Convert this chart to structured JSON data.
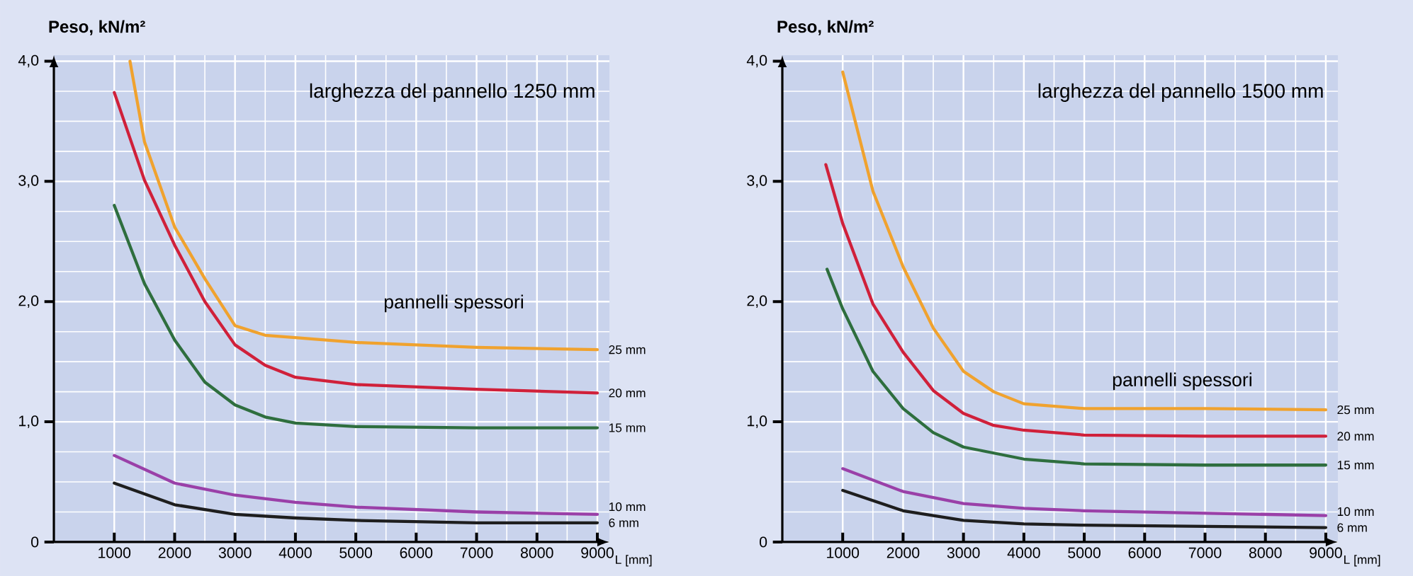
{
  "chart_data": [
    {
      "type": "line",
      "title": "larghezza del pannello 1250 mm",
      "ylabel": "Peso, kN/m²",
      "xlabel": "L [mm]",
      "legend_title": "pannelli spessori",
      "grid": true,
      "xlim": [
        0,
        9200
      ],
      "ylim": [
        0,
        4.05
      ],
      "xticks": [
        1000,
        2000,
        3000,
        4000,
        5000,
        6000,
        7000,
        8000,
        9000
      ],
      "yticks": [
        {
          "value": 0,
          "label": "0"
        },
        {
          "value": 1,
          "label": "1,0"
        },
        {
          "value": 2,
          "label": "2,0"
        },
        {
          "value": 3,
          "label": "3,0"
        },
        {
          "value": 4,
          "label": "4,0"
        }
      ],
      "series": [
        {
          "name": "25 mm",
          "color": "#f0a22e",
          "x": [
            1260,
            1500,
            2000,
            2500,
            3000,
            3500,
            4000,
            5000,
            7000,
            9000
          ],
          "values": [
            4.0,
            3.33,
            2.62,
            2.19,
            1.8,
            1.72,
            1.7,
            1.66,
            1.62,
            1.6
          ]
        },
        {
          "name": "20 mm",
          "color": "#d0203a",
          "x": [
            1000,
            1500,
            2000,
            2500,
            3000,
            3500,
            4000,
            5000,
            7000,
            9000
          ],
          "values": [
            3.74,
            3.01,
            2.47,
            2.0,
            1.64,
            1.47,
            1.37,
            1.31,
            1.27,
            1.24
          ]
        },
        {
          "name": "15 mm",
          "color": "#2e6e3e",
          "x": [
            1000,
            1500,
            2000,
            2500,
            3000,
            3500,
            4000,
            5000,
            7000,
            9000
          ],
          "values": [
            2.8,
            2.15,
            1.68,
            1.33,
            1.14,
            1.04,
            0.99,
            0.96,
            0.95,
            0.95
          ]
        },
        {
          "name": "10 mm",
          "color": "#9a40a8",
          "x": [
            1000,
            2000,
            3000,
            4000,
            5000,
            7000,
            9000
          ],
          "values": [
            0.72,
            0.49,
            0.39,
            0.33,
            0.29,
            0.25,
            0.23
          ]
        },
        {
          "name": "6 mm",
          "color": "#1e1e1e",
          "x": [
            1000,
            2000,
            3000,
            4000,
            5000,
            7000,
            9000
          ],
          "values": [
            0.49,
            0.31,
            0.23,
            0.2,
            0.18,
            0.16,
            0.16
          ]
        }
      ]
    },
    {
      "type": "line",
      "title": "larghezza del pannello 1500 mm",
      "ylabel": "Peso, kN/m²",
      "xlabel": "L [mm]",
      "legend_title": "pannelli spessori",
      "grid": true,
      "xlim": [
        0,
        9200
      ],
      "ylim": [
        0,
        4.05
      ],
      "xticks": [
        1000,
        2000,
        3000,
        4000,
        5000,
        6000,
        7000,
        8000,
        9000
      ],
      "yticks": [
        {
          "value": 0,
          "label": "0"
        },
        {
          "value": 1,
          "label": "1,0"
        },
        {
          "value": 2,
          "label": "2,0"
        },
        {
          "value": 3,
          "label": "3,0"
        },
        {
          "value": 4,
          "label": "4,0"
        }
      ],
      "series": [
        {
          "name": "25 mm",
          "color": "#f0a22e",
          "x": [
            1000,
            1500,
            2000,
            2500,
            3000,
            3500,
            4000,
            5000,
            7000,
            9000
          ],
          "values": [
            3.91,
            2.92,
            2.29,
            1.78,
            1.42,
            1.25,
            1.15,
            1.11,
            1.11,
            1.1
          ]
        },
        {
          "name": "20 mm",
          "color": "#d0203a",
          "x": [
            720,
            1000,
            1500,
            2000,
            2500,
            3000,
            3500,
            4000,
            5000,
            7000,
            9000
          ],
          "values": [
            3.14,
            2.65,
            1.98,
            1.58,
            1.26,
            1.07,
            0.97,
            0.93,
            0.89,
            0.88,
            0.88
          ]
        },
        {
          "name": "15 mm",
          "color": "#2e6e3e",
          "x": [
            740,
            1000,
            1500,
            2000,
            2500,
            3000,
            4000,
            5000,
            7000,
            9000
          ],
          "values": [
            2.27,
            1.94,
            1.42,
            1.11,
            0.91,
            0.79,
            0.69,
            0.65,
            0.64,
            0.64
          ]
        },
        {
          "name": "10 mm",
          "color": "#9a40a8",
          "x": [
            1000,
            2000,
            3000,
            4000,
            5000,
            7000,
            9000
          ],
          "values": [
            0.61,
            0.42,
            0.32,
            0.28,
            0.26,
            0.24,
            0.22
          ]
        },
        {
          "name": "6 mm",
          "color": "#1e1e1e",
          "x": [
            1000,
            2000,
            3000,
            4000,
            5000,
            7000,
            9000
          ],
          "values": [
            0.43,
            0.26,
            0.18,
            0.15,
            0.14,
            0.13,
            0.12
          ]
        }
      ]
    }
  ]
}
